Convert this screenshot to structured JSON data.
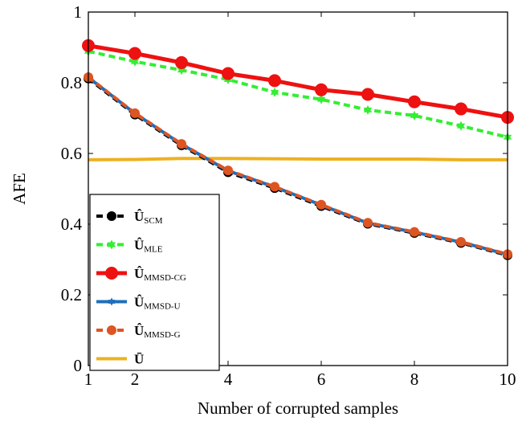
{
  "chart_data": {
    "type": "line",
    "xlabel": "Number of corrupted samples",
    "ylabel": "AFE",
    "xlim": [
      1,
      10
    ],
    "ylim": [
      0,
      1
    ],
    "x_ticks": [
      "1",
      "2",
      "4",
      "6",
      "8",
      "10"
    ],
    "x_tick_values": [
      1,
      2,
      4,
      6,
      8,
      10
    ],
    "y_ticks": [
      "0",
      "0.2",
      "0.4",
      "0.6",
      "0.8",
      "1"
    ],
    "y_tick_values": [
      0,
      0.2,
      0.4,
      0.6,
      0.8,
      1
    ],
    "legend_position": "bottom-left",
    "grid": false,
    "x": [
      1,
      2,
      3,
      4,
      5,
      6,
      7,
      8,
      9,
      10
    ],
    "series": [
      {
        "name": "Û",
        "sub": "SCM",
        "color": "#000000",
        "dash": "8,5",
        "width": 4,
        "marker": "circle",
        "marker_r": 6,
        "values": [
          0.812,
          0.71,
          0.623,
          0.547,
          0.502,
          0.451,
          0.401,
          0.375,
          0.347,
          0.312
        ]
      },
      {
        "name": "Û",
        "sub": "MLE",
        "color": "#33ee33",
        "dash": "8,5",
        "width": 4,
        "marker": "star",
        "marker_r": 6,
        "values": [
          0.889,
          0.86,
          0.836,
          0.809,
          0.773,
          0.753,
          0.723,
          0.707,
          0.678,
          0.646
        ]
      },
      {
        "name": "Û",
        "sub": "MMSD-CG",
        "color": "#ee1111",
        "dash": "",
        "width": 5,
        "marker": "circle",
        "marker_r": 8,
        "values": [
          0.905,
          0.883,
          0.857,
          0.826,
          0.806,
          0.78,
          0.767,
          0.746,
          0.726,
          0.702
        ]
      },
      {
        "name": "Û",
        "sub": "MMSD-U",
        "color": "#1f6fba",
        "dash": "",
        "width": 4,
        "marker": "star",
        "marker_r": 5,
        "values": [
          0.815,
          0.713,
          0.626,
          0.551,
          0.505,
          0.454,
          0.403,
          0.377,
          0.349,
          0.314
        ]
      },
      {
        "name": "Û",
        "sub": "MMSD-G",
        "color": "#dd5522",
        "dash": "8,5",
        "width": 4,
        "marker": "circle",
        "marker_r": 6,
        "values": [
          0.816,
          0.714,
          0.627,
          0.552,
          0.506,
          0.455,
          0.404,
          0.378,
          0.35,
          0.315
        ]
      },
      {
        "name": "Ū",
        "sub": "",
        "color": "#edb120",
        "dash": "",
        "width": 4,
        "marker": "none",
        "marker_r": 0,
        "values": [
          0.582,
          0.583,
          0.586,
          0.586,
          0.585,
          0.584,
          0.584,
          0.584,
          0.582,
          0.582
        ]
      }
    ]
  }
}
